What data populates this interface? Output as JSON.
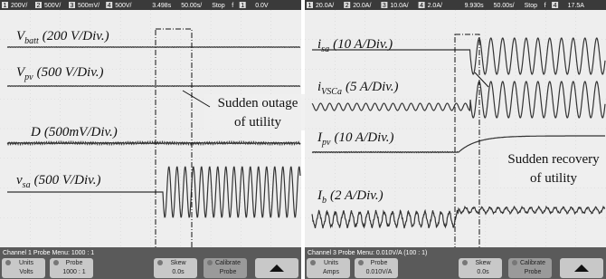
{
  "panels": [
    {
      "status": {
        "channels": [
          {
            "number": "1",
            "scale": "200V/"
          },
          {
            "number": "2",
            "scale": "500V/"
          },
          {
            "number": "3",
            "scale": "500mV/"
          },
          {
            "number": "4",
            "scale": "500V/"
          }
        ],
        "position": "3.498s",
        "timebase": "50.00s/",
        "state": "Stop",
        "trigger_symbol": "f",
        "trigger_channel": "1",
        "trigger_level": "0.0V"
      },
      "traces": [
        {
          "symbol": "V",
          "subscript": "batt",
          "scale": "(200 V/Div.)"
        },
        {
          "symbol": "V",
          "subscript": "pv",
          "scale": "(500 V/Div.)"
        },
        {
          "symbol": "D",
          "subscript": "",
          "scale": "(500mV/Div.)"
        },
        {
          "symbol": "v",
          "subscript": "sa",
          "scale": "(500 V/Div.)"
        }
      ],
      "annotation": [
        "Sudden outage",
        "of utility"
      ],
      "menu": {
        "title": "Channel 1 Probe Menu: 1000 : 1",
        "buttons": [
          {
            "label": "Units",
            "value": "Volts"
          },
          {
            "label": "Probe",
            "value": "1000 : 1"
          },
          {
            "label": "Skew",
            "value": "0.0s"
          },
          {
            "label": "Calibrate",
            "value": "Probe"
          }
        ]
      }
    },
    {
      "status": {
        "channels": [
          {
            "number": "1",
            "scale": "20.0A/"
          },
          {
            "number": "2",
            "scale": "20.0A/"
          },
          {
            "number": "3",
            "scale": "10.0A/"
          },
          {
            "number": "4",
            "scale": "2.0A/"
          }
        ],
        "position": "9.930s",
        "timebase": "50.00s/",
        "state": "Stop",
        "trigger_symbol": "f",
        "trigger_channel": "4",
        "trigger_level": "17.5A"
      },
      "traces": [
        {
          "symbol": "i",
          "subscript": "sa",
          "scale": "(10 A/Div.)"
        },
        {
          "symbol": "i",
          "subscript": "VSCa",
          "scale": "(5 A/Div.)"
        },
        {
          "symbol": "I",
          "subscript": "pv",
          "scale": "(10 A/Div.)"
        },
        {
          "symbol": "I",
          "subscript": "b",
          "scale": "(2 A/Div.)"
        }
      ],
      "annotation": [
        "Sudden recovery",
        "of utility"
      ],
      "menu": {
        "title": "Channel 3 Probe Menu: 0.010V/A (100 : 1)",
        "buttons": [
          {
            "label": "Units",
            "value": "Amps"
          },
          {
            "label": "Probe",
            "value": "0.010V/A"
          },
          {
            "label": "Skew",
            "value": "0.0s"
          },
          {
            "label": "Calibrate",
            "value": "Probe"
          }
        ]
      }
    }
  ]
}
